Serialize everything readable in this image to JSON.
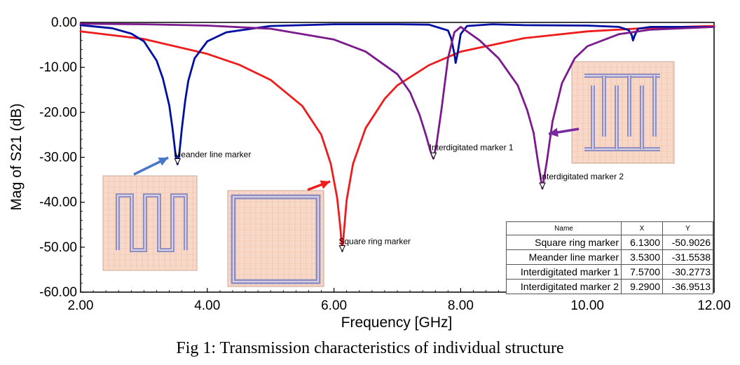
{
  "caption": "Fig 1: Transmission characteristics of individual structure",
  "chart_data": {
    "type": "line",
    "xlabel": "Frequency [GHz]",
    "ylabel": "Mag of S21 (dB)",
    "xlim": [
      2,
      12
    ],
    "ylim": [
      -60,
      0
    ],
    "xticks": [
      "2.00",
      "4.00",
      "6.00",
      "8.00",
      "10.00",
      "12.00"
    ],
    "yticks": [
      "0.00",
      "-10.00",
      "-20.00",
      "-30.00",
      "-40.00",
      "-50.00",
      "-60.00"
    ],
    "grid": false,
    "colors": {
      "meander": "#000fa0",
      "square": "#ee1c1c",
      "interdigitated": "#7a1a8c",
      "arrow_blue": "#4a78c8",
      "arrow_red": "#ee1c1c",
      "arrow_purple": "#7a2aa0",
      "inset_fill": "#f8d8c8",
      "inset_line": "#8c8cc8"
    },
    "series": [
      {
        "key": "meander",
        "x": [
          2.0,
          2.5,
          2.8,
          3.0,
          3.2,
          3.3,
          3.4,
          3.45,
          3.5,
          3.53,
          3.56,
          3.6,
          3.65,
          3.7,
          3.8,
          4.0,
          4.3,
          5.0,
          6.0,
          7.0,
          7.5,
          7.8,
          7.85,
          7.9,
          7.92,
          7.95,
          8.0,
          8.1,
          8.5,
          9.0,
          10.0,
          10.5,
          10.65,
          10.7,
          10.72,
          10.75,
          10.8,
          11.0,
          12.0
        ],
        "y": [
          -0.6,
          -1.3,
          -2.5,
          -4.2,
          -8.5,
          -12.5,
          -18.5,
          -23.5,
          -29.5,
          -31.55,
          -29.0,
          -23.5,
          -17.5,
          -13.0,
          -8.0,
          -4.2,
          -2.2,
          -0.8,
          -0.4,
          -0.4,
          -0.5,
          -1.8,
          -3.5,
          -7.0,
          -9.0,
          -7.0,
          -2.6,
          -0.8,
          -0.4,
          -0.6,
          -0.7,
          -1.0,
          -1.7,
          -2.8,
          -4.0,
          -2.8,
          -1.4,
          -1.0,
          -1.0
        ]
      },
      {
        "key": "square",
        "x": [
          2.0,
          3.0,
          4.0,
          4.5,
          5.0,
          5.5,
          5.8,
          5.95,
          6.05,
          6.1,
          6.13,
          6.16,
          6.2,
          6.3,
          6.5,
          6.8,
          7.0,
          7.5,
          8.0,
          9.0,
          10.0,
          11.0,
          12.0
        ],
        "y": [
          -2.0,
          -3.7,
          -7.0,
          -9.4,
          -12.8,
          -18.6,
          -25.0,
          -31.5,
          -39.0,
          -45.5,
          -50.9,
          -46.0,
          -39.5,
          -31.5,
          -23.5,
          -17.0,
          -14.0,
          -9.5,
          -6.5,
          -3.5,
          -2.0,
          -1.2,
          -0.8
        ]
      },
      {
        "key": "interdigitated",
        "x": [
          2.0,
          3.0,
          4.0,
          5.0,
          6.0,
          6.5,
          7.0,
          7.2,
          7.35,
          7.45,
          7.52,
          7.57,
          7.62,
          7.7,
          7.8,
          7.9,
          8.0,
          8.3,
          8.6,
          8.9,
          9.05,
          9.15,
          9.22,
          9.29,
          9.36,
          9.45,
          9.6,
          9.8,
          10.0,
          10.5,
          11.0,
          12.0
        ],
        "y": [
          -0.3,
          -0.4,
          -0.7,
          -1.4,
          -3.8,
          -6.5,
          -11.5,
          -15.5,
          -20.5,
          -25.0,
          -28.5,
          -30.28,
          -27.0,
          -19.0,
          -8.0,
          -2.2,
          -1.0,
          -4.0,
          -8.0,
          -14.0,
          -19.5,
          -24.5,
          -31.0,
          -36.95,
          -31.0,
          -22.0,
          -13.5,
          -8.0,
          -5.3,
          -2.6,
          -1.6,
          -1.0
        ]
      }
    ],
    "markers": [
      {
        "name": "Square ring marker",
        "series": "square",
        "x": 6.13,
        "y": -50.9026,
        "x_text": "6.1300",
        "y_text": "-50.9026"
      },
      {
        "name": "Meander line marker",
        "series": "meander",
        "x": 3.53,
        "y": -31.5538,
        "x_text": "3.5300",
        "y_text": "-31.5538"
      },
      {
        "name": "Interdigitated marker 1",
        "series": "interdigitated",
        "x": 7.57,
        "y": -30.2773,
        "x_text": "7.5700",
        "y_text": "-30.2773"
      },
      {
        "name": "Interdigitated marker 2",
        "series": "interdigitated",
        "x": 9.29,
        "y": -36.9513,
        "x_text": "9.2900",
        "y_text": "-36.9513"
      }
    ],
    "table_headers": [
      "Name",
      "X",
      "Y"
    ]
  }
}
